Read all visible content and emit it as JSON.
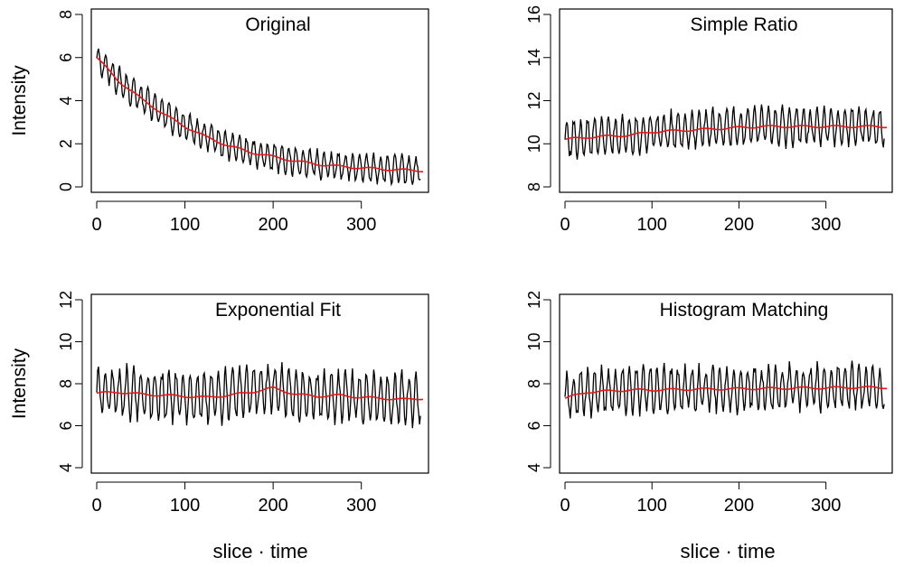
{
  "figure": {
    "xlabel_text": "slice · time"
  },
  "chart_data": [
    {
      "type": "line",
      "title": "Original",
      "xlabel": "",
      "ylabel": "Intensity",
      "xlim": [
        0,
        370
      ],
      "ylim": [
        0,
        8
      ],
      "xticks": [
        0,
        100,
        200,
        300
      ],
      "yticks": [
        0,
        2,
        4,
        6,
        8
      ],
      "grid": false,
      "colors": {
        "raw": "#000000",
        "smooth": "#e31a1c"
      },
      "trend": {
        "kind": "exp",
        "start": 6.0,
        "end": 0.7,
        "k": 0.014
      },
      "noise": 0.6,
      "series": [
        {
          "x": [
            0,
            25,
            50,
            75,
            100,
            125,
            150,
            175,
            200,
            225,
            250,
            275,
            300,
            325,
            350,
            370
          ],
          "values": [
            6.0,
            4.9,
            4.1,
            3.4,
            2.8,
            2.3,
            1.9,
            1.6,
            1.4,
            1.2,
            1.05,
            0.95,
            0.88,
            0.82,
            0.78,
            0.75
          ]
        }
      ]
    },
    {
      "type": "line",
      "title": "Simple Ratio",
      "xlabel": "",
      "ylabel": "",
      "xlim": [
        0,
        370
      ],
      "ylim": [
        8,
        16
      ],
      "xticks": [
        0,
        100,
        200,
        300
      ],
      "yticks": [
        8,
        10,
        12,
        14,
        16
      ],
      "grid": false,
      "colors": {
        "raw": "#000000",
        "smooth": "#e31a1c"
      },
      "trend": {
        "kind": "linear",
        "start": 10.2,
        "end": 10.8
      },
      "noise": 0.8,
      "series": [
        {
          "x": [
            0,
            25,
            50,
            75,
            100,
            125,
            150,
            175,
            200,
            225,
            250,
            275,
            300,
            325,
            350,
            370
          ],
          "values": [
            10.2,
            10.3,
            10.35,
            10.4,
            10.55,
            10.6,
            10.65,
            10.7,
            10.75,
            10.8,
            10.8,
            10.8,
            10.8,
            10.8,
            10.8,
            10.8
          ]
        }
      ]
    },
    {
      "type": "line",
      "title": "Exponential Fit",
      "xlabel": "slice · time",
      "ylabel": "Intensity",
      "xlim": [
        0,
        370
      ],
      "ylim": [
        4,
        12
      ],
      "xticks": [
        0,
        100,
        200,
        300
      ],
      "yticks": [
        4,
        6,
        8,
        10,
        12
      ],
      "grid": false,
      "colors": {
        "raw": "#000000",
        "smooth": "#e31a1c"
      },
      "trend": {
        "kind": "linear",
        "start": 7.5,
        "end": 7.3
      },
      "noise": 1.1,
      "series": [
        {
          "x": [
            0,
            25,
            50,
            75,
            100,
            125,
            150,
            175,
            200,
            225,
            250,
            275,
            300,
            325,
            350,
            370
          ],
          "values": [
            7.55,
            7.6,
            7.5,
            7.45,
            7.4,
            7.35,
            7.45,
            7.6,
            7.8,
            7.5,
            7.4,
            7.45,
            7.35,
            7.3,
            7.25,
            7.3
          ]
        }
      ]
    },
    {
      "type": "line",
      "title": "Histogram Matching",
      "xlabel": "slice · time",
      "ylabel": "",
      "xlim": [
        0,
        370
      ],
      "ylim": [
        4,
        12
      ],
      "xticks": [
        0,
        100,
        200,
        300
      ],
      "yticks": [
        4,
        6,
        8,
        10,
        12
      ],
      "grid": false,
      "colors": {
        "raw": "#000000",
        "smooth": "#e31a1c"
      },
      "trend": {
        "kind": "linear",
        "start": 7.5,
        "end": 7.8
      },
      "noise": 1.0,
      "series": [
        {
          "x": [
            0,
            25,
            50,
            75,
            100,
            125,
            150,
            175,
            200,
            225,
            250,
            275,
            300,
            325,
            350,
            370
          ],
          "values": [
            7.3,
            7.6,
            7.65,
            7.7,
            7.7,
            7.72,
            7.74,
            7.75,
            7.76,
            7.77,
            7.78,
            7.8,
            7.8,
            7.82,
            7.82,
            7.82
          ]
        }
      ]
    }
  ]
}
